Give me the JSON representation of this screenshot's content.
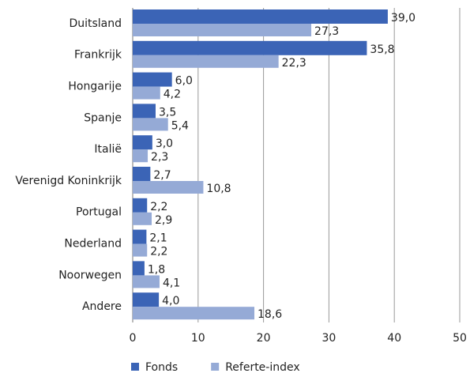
{
  "chart_data": {
    "type": "hbar",
    "categories": [
      "Duitsland",
      "Frankrijk",
      "Hongarije",
      "Spanje",
      "Italië",
      "Verenigd Koninkrijk",
      "Portugal",
      "Nederland",
      "Noorwegen",
      "Andere"
    ],
    "series": [
      {
        "name": "Fonds",
        "color": "#3b64b6",
        "values": [
          39.0,
          35.8,
          6.0,
          3.5,
          3.0,
          2.7,
          2.2,
          2.1,
          1.8,
          4.0
        ],
        "value_labels": [
          "39,0",
          "35,8",
          "6,0",
          "3,5",
          "3,0",
          "2,7",
          "2,2",
          "2,1",
          "1,8",
          "4,0"
        ]
      },
      {
        "name": "Referte-index",
        "color": "#95aad6",
        "values": [
          27.3,
          22.3,
          4.2,
          5.4,
          2.3,
          10.8,
          2.9,
          2.2,
          4.1,
          18.6
        ],
        "value_labels": [
          "27,3",
          "22,3",
          "4,2",
          "5,4",
          "2,3",
          "10,8",
          "2,9",
          "2,2",
          "4,1",
          "18,6"
        ]
      }
    ],
    "xlim": [
      0,
      50
    ],
    "xticks": [
      0,
      10,
      20,
      30,
      40,
      50
    ],
    "grid": true,
    "legend": "bottom"
  }
}
